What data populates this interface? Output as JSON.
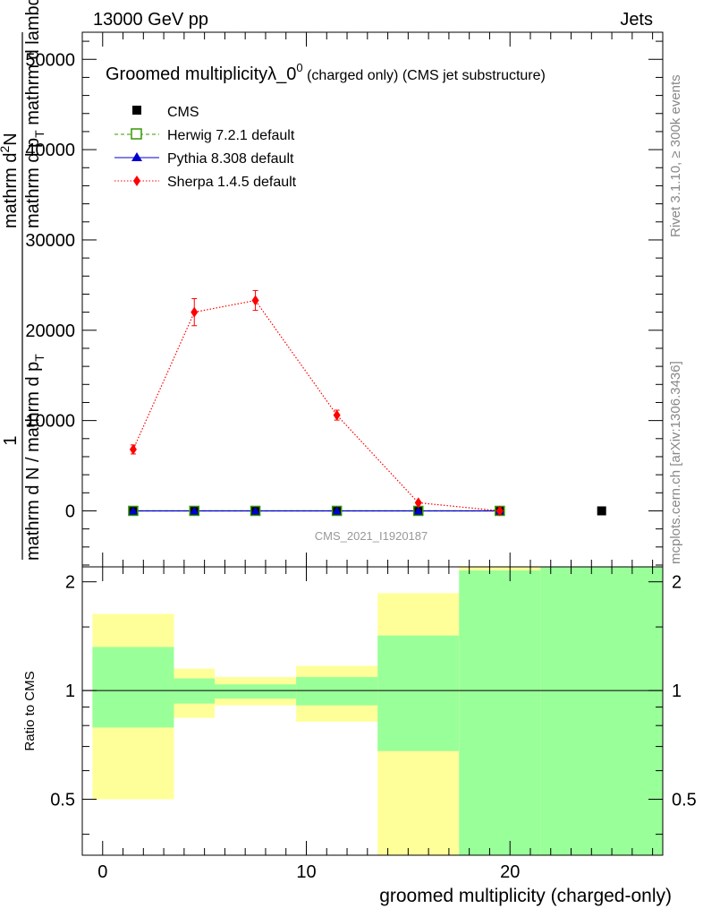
{
  "header": {
    "energy_label": "13000 GeV pp",
    "process_label": "Jets"
  },
  "side": {
    "rivet_label": "Rivet 3.1.10, ≥ 300k events",
    "mcplots_label": "mcplots.cern.ch [arXiv:1306.3436]"
  },
  "chart_data": [
    {
      "type": "line",
      "panel": "main",
      "title": "Groomed multiplicityλ_0",
      "title_sup": "0",
      "title_suffix": " (charged only) (CMS jet substructure)",
      "ylabel_lines": [
        "1",
        "mathrm d N / mathrm d mathrm d p_T mathrm d lambda",
        "mathrm d^2N",
        "mathrm d p_T mathrm d lambda"
      ],
      "ylabel_parts": {
        "numerator_1": "1",
        "denominator_1": "mathrm d N / mathrm d p",
        "denominator_1_sub": "T",
        "numerator_2": "mathrm d",
        "numerator_2_sup": "2",
        "numerator_2_end": "N",
        "denominator_2": "mathrm d p",
        "denominator_2_sub": "T",
        "denominator_2_end": " mathrm d lambda"
      },
      "analysis_label": "CMS_2021_I1920187",
      "xlim": [
        -1,
        27.5
      ],
      "ylim": [
        -6200,
        53000
      ],
      "yticks": [
        0,
        10000,
        20000,
        30000,
        40000,
        50000
      ],
      "ytick_labels": [
        "0",
        "10000",
        "20000",
        "30000",
        "40000",
        "50000"
      ],
      "legend": [
        {
          "label": "CMS",
          "color": "#000000",
          "marker": "square",
          "line": "none"
        },
        {
          "label": "Herwig 7.2.1 default",
          "color": "#339900",
          "marker": "open-square",
          "line": "dashed"
        },
        {
          "label": "Pythia 8.308 default",
          "color": "#0000cc",
          "marker": "triangle",
          "line": "solid"
        },
        {
          "label": "Sherpa 1.4.5 default",
          "color": "#ff0000",
          "marker": "diamond",
          "line": "dotted"
        }
      ],
      "series": [
        {
          "name": "CMS",
          "x": [
            1.5,
            4.5,
            7.5,
            11.5,
            15.5,
            19.5,
            24.5
          ],
          "y": [
            0,
            0,
            0,
            0,
            0,
            0,
            0
          ]
        },
        {
          "name": "Herwig 7.2.1 default",
          "x": [
            1.5,
            4.5,
            7.5,
            11.5,
            15.5,
            19.5
          ],
          "y": [
            0,
            0,
            0,
            0,
            0,
            0
          ]
        },
        {
          "name": "Pythia 8.308 default",
          "x": [
            1.5,
            4.5,
            7.5,
            11.5,
            15.5,
            19.5
          ],
          "y": [
            0,
            0,
            0,
            0,
            0,
            0
          ]
        },
        {
          "name": "Sherpa 1.4.5 default",
          "x": [
            1.5,
            4.5,
            7.5,
            11.5,
            15.5,
            19.5
          ],
          "y": [
            6800,
            22000,
            23300,
            10600,
            900,
            0
          ],
          "yerr": [
            500,
            1500,
            1100,
            550,
            120,
            0
          ]
        }
      ]
    },
    {
      "type": "area",
      "panel": "ratio",
      "ylabel": "Ratio to CMS",
      "xlabel": "groomed multiplicity (charged-only)",
      "xlim": [
        -1,
        27.5
      ],
      "ylim": [
        0.35,
        2.2
      ],
      "yticks": [
        0.5,
        1,
        2
      ],
      "ytick_labels": [
        "0.5",
        "1",
        "2"
      ],
      "xticks": [
        0,
        10,
        20
      ],
      "xtick_labels": [
        "0",
        "10",
        "20"
      ],
      "bins": [
        {
          "xlo": -0.5,
          "xhi": 3.5,
          "stat_lo": 0.79,
          "stat_hi": 1.32,
          "tot_lo": 0.5,
          "tot_hi": 1.63
        },
        {
          "xlo": 3.5,
          "xhi": 5.5,
          "stat_lo": 0.92,
          "stat_hi": 1.08,
          "tot_lo": 0.84,
          "tot_hi": 1.15
        },
        {
          "xlo": 5.5,
          "xhi": 9.5,
          "stat_lo": 0.95,
          "stat_hi": 1.04,
          "tot_lo": 0.91,
          "tot_hi": 1.09
        },
        {
          "xlo": 9.5,
          "xhi": 13.5,
          "stat_lo": 0.91,
          "stat_hi": 1.09,
          "tot_lo": 0.82,
          "tot_hi": 1.17
        },
        {
          "xlo": 13.5,
          "xhi": 17.5,
          "stat_lo": 0.68,
          "stat_hi": 1.42,
          "tot_lo": 0.35,
          "tot_hi": 1.86
        },
        {
          "xlo": 17.5,
          "xhi": 21.5,
          "stat_lo": 0.35,
          "stat_hi": 2.15,
          "tot_lo": 0.35,
          "tot_hi": 2.2
        },
        {
          "xlo": 21.5,
          "xhi": 27.5,
          "stat_lo": 0.35,
          "stat_hi": 2.2,
          "tot_lo": 0.35,
          "tot_hi": 2.2
        }
      ],
      "colors": {
        "stat": "#99ff99",
        "total": "#ffff99",
        "reference": "#000000"
      }
    }
  ]
}
